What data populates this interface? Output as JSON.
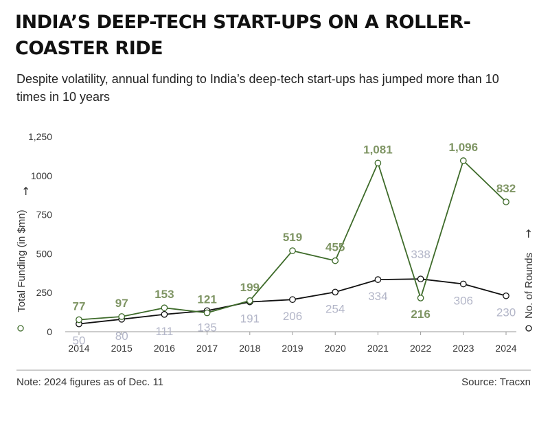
{
  "header": {
    "title": "INDIA’S DEEP-TECH START-UPS ON A ROLLER-COASTER RIDE",
    "subtitle": "Despite volatility, annual funding to India’s deep-tech start-ups has jumped more than 10 times in 10 years"
  },
  "footer": {
    "note": "Note: 2024 figures as of Dec. 11",
    "source": "Source: Tracxn"
  },
  "chart_data": {
    "type": "line",
    "x": [
      "2014",
      "2015",
      "2016",
      "2017",
      "2018",
      "2019",
      "2020",
      "2021",
      "2022",
      "2023",
      "2024"
    ],
    "series": [
      {
        "name": "Total Funding (in $mn)",
        "axis": "left",
        "color": "#3e6b2a",
        "label_color": "#7f9564",
        "values": [
          77,
          97,
          153,
          121,
          199,
          519,
          455,
          1081,
          216,
          1096,
          832
        ]
      },
      {
        "name": "No. of Rounds",
        "axis": "right",
        "color": "#111111",
        "label_color": "#b3b6c8",
        "values": [
          50,
          80,
          111,
          135,
          191,
          206,
          254,
          334,
          338,
          306,
          230
        ]
      }
    ],
    "ylabel_left": "Total Funding (in $mn)",
    "ylabel_right": "No. of Rounds",
    "ylim": [
      0,
      1250
    ],
    "yticks": [
      "0",
      "250",
      "500",
      "750",
      "1000",
      "1,250"
    ],
    "ytick_values": [
      0,
      250,
      500,
      750,
      1000,
      1250
    ],
    "grid": false
  }
}
